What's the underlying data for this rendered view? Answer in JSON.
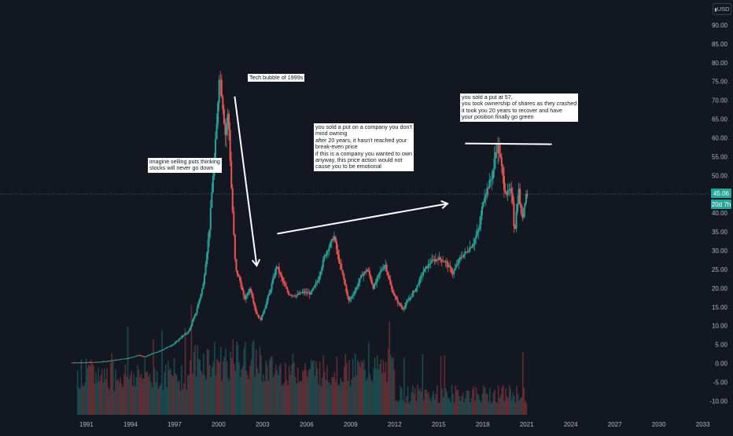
{
  "currency": "USD",
  "price_labels": {
    "last_price": "45.06",
    "countdown": "20d 7h"
  },
  "colors": {
    "background": "#131722",
    "up": "#26a69a",
    "down": "#ef5350",
    "last_price_bg": "#26a69a",
    "axis_text": "#b2b5be",
    "annotation_line": "#ffffff"
  },
  "annotations": [
    {
      "id": "note-1",
      "text": "imagine selling puts thinking\nstocks will never go down"
    },
    {
      "id": "note-2",
      "text": "Tech bubble of 1999s"
    },
    {
      "id": "note-3",
      "text": "you sold a put on a company you don't\nmind owning\nafter 20 years, it hasn't reached your\nbreak-even price\nif this is a company you wanted to own\nanyway, this price action would not\ncause you to be emotional"
    },
    {
      "id": "note-4",
      "text": "you sold a put at 57,\nyou took ownership of shares as they crashed\nit took you 20 years to recover and have\nyour position finally go green"
    }
  ],
  "chart_data": {
    "type": "candlestick",
    "title": "",
    "x_axis": {
      "ticks": [
        "1991",
        "1994",
        "1997",
        "2000",
        "2003",
        "2006",
        "2009",
        "2012",
        "2015",
        "2018",
        "2021",
        "2024",
        "2027",
        "2030",
        "2033"
      ],
      "range": [
        1990.2,
        2033.5
      ]
    },
    "y_axis": {
      "position": "right",
      "ticks": [
        "90.00",
        "85.00",
        "80.00",
        "75.00",
        "70.00",
        "65.00",
        "60.00",
        "55.00",
        "50.00",
        "45.00",
        "40.00",
        "35.00",
        "30.00",
        "25.00",
        "20.00",
        "15.00",
        "10.00",
        "5.00",
        "0.00",
        "-5.00",
        "-10.00"
      ],
      "range": [
        -12,
        95
      ]
    },
    "last_price": 45.06,
    "grid": false,
    "price_series": {
      "points": [
        [
          1990.0,
          0.2
        ],
        [
          1991.0,
          0.25
        ],
        [
          1992.0,
          0.4
        ],
        [
          1993.0,
          0.9
        ],
        [
          1994.0,
          1.5
        ],
        [
          1994.6,
          2.2
        ],
        [
          1995.0,
          1.7
        ],
        [
          1995.5,
          2.6
        ],
        [
          1996.0,
          3.2
        ],
        [
          1996.5,
          4.2
        ],
        [
          1997.0,
          5.2
        ],
        [
          1997.5,
          7.0
        ],
        [
          1998.0,
          8.5
        ],
        [
          1998.5,
          13.5
        ],
        [
          1999.0,
          21.0
        ],
        [
          1999.4,
          35.0
        ],
        [
          1999.7,
          52.0
        ],
        [
          1999.9,
          62.0
        ],
        [
          2000.1,
          78.0
        ],
        [
          2000.3,
          70.0
        ],
        [
          2000.5,
          61.0
        ],
        [
          2000.7,
          67.0
        ],
        [
          2000.9,
          48.0
        ],
        [
          2001.2,
          25.0
        ],
        [
          2001.5,
          22.0
        ],
        [
          2001.8,
          17.0
        ],
        [
          2002.2,
          20.0
        ],
        [
          2002.6,
          13.5
        ],
        [
          2002.9,
          11.5
        ],
        [
          2003.2,
          15.0
        ],
        [
          2003.6,
          20.0
        ],
        [
          2004.0,
          26.0
        ],
        [
          2004.4,
          22.0
        ],
        [
          2004.8,
          18.5
        ],
        [
          2005.3,
          18.0
        ],
        [
          2005.8,
          19.0
        ],
        [
          2006.3,
          18.5
        ],
        [
          2006.8,
          22.0
        ],
        [
          2007.3,
          29.0
        ],
        [
          2007.7,
          32.0
        ],
        [
          2007.9,
          34.0
        ],
        [
          2008.2,
          28.0
        ],
        [
          2008.6,
          22.0
        ],
        [
          2008.9,
          16.5
        ],
        [
          2009.3,
          19.0
        ],
        [
          2009.8,
          23.5
        ],
        [
          2010.2,
          25.0
        ],
        [
          2010.6,
          20.0
        ],
        [
          2011.0,
          24.0
        ],
        [
          2011.4,
          26.5
        ],
        [
          2011.8,
          20.0
        ],
        [
          2012.2,
          16.5
        ],
        [
          2012.6,
          14.5
        ],
        [
          2013.0,
          17.0
        ],
        [
          2013.5,
          20.0
        ],
        [
          2014.0,
          24.5
        ],
        [
          2014.5,
          27.0
        ],
        [
          2015.0,
          28.0
        ],
        [
          2015.5,
          27.0
        ],
        [
          2016.0,
          24.0
        ],
        [
          2016.5,
          28.0
        ],
        [
          2017.0,
          30.0
        ],
        [
          2017.4,
          32.0
        ],
        [
          2017.8,
          36.0
        ],
        [
          2018.1,
          44.0
        ],
        [
          2018.4,
          47.0
        ],
        [
          2018.7,
          50.0
        ],
        [
          2018.9,
          56.0
        ],
        [
          2019.1,
          58.0
        ],
        [
          2019.3,
          53.0
        ],
        [
          2019.5,
          47.0
        ],
        [
          2019.7,
          45.0
        ],
        [
          2019.9,
          46.0
        ],
        [
          2020.1,
          43.0
        ],
        [
          2020.2,
          34.0
        ],
        [
          2020.35,
          41.0
        ],
        [
          2020.5,
          46.0
        ],
        [
          2020.7,
          38.0
        ],
        [
          2020.85,
          42.0
        ],
        [
          2021.0,
          45.06
        ]
      ]
    },
    "annotation_lines": [
      {
        "from": [
          2001.1,
          71.0
        ],
        "to": [
          2002.6,
          26.0
        ],
        "arrow": true
      },
      {
        "from": [
          2004.0,
          34.5
        ],
        "to": [
          2015.6,
          42.5
        ],
        "arrow": true
      },
      {
        "from": [
          2016.8,
          58.5
        ],
        "to": [
          2022.7,
          58.3
        ],
        "arrow": false
      }
    ]
  }
}
